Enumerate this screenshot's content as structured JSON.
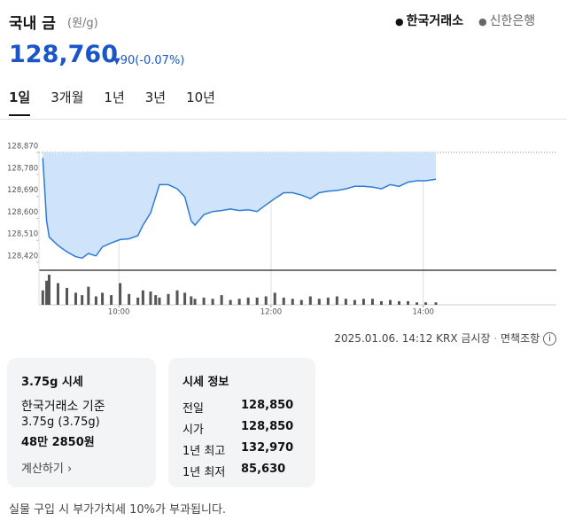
{
  "header": {
    "title": "국내 금",
    "unit": "(원/g)",
    "sources": [
      "한국거래소",
      "신한은행"
    ],
    "price": "128,760",
    "change": "90(-0.07%)"
  },
  "tabs": [
    "1일",
    "3개월",
    "1년",
    "3년",
    "10년"
  ],
  "chart_data": {
    "type": "area",
    "x": [
      540,
      543,
      545,
      552,
      559,
      566,
      571,
      576,
      582,
      587,
      594,
      601,
      608,
      615,
      619,
      625,
      629,
      632,
      639,
      646,
      652,
      657,
      660,
      667,
      674,
      681,
      688,
      695,
      702,
      709,
      716,
      723,
      730,
      737,
      744,
      751,
      758,
      765,
      772,
      779,
      786,
      793,
      800,
      807,
      814,
      821,
      828,
      835,
      842,
      850
    ],
    "values": [
      128847,
      128589,
      128523,
      128489,
      128463,
      128443,
      128437,
      128456,
      128446,
      128483,
      128499,
      128513,
      128516,
      128529,
      128572,
      128622,
      128688,
      128738,
      128738,
      128721,
      128688,
      128589,
      128572,
      128615,
      128628,
      128632,
      128638,
      128632,
      128635,
      128628,
      128655,
      128681,
      128705,
      128705,
      128695,
      128681,
      128705,
      128711,
      128714,
      128721,
      128731,
      128731,
      128728,
      128721,
      128738,
      128731,
      128748,
      128754,
      128754,
      128760
    ],
    "volume": [
      12,
      20,
      25,
      18,
      14,
      10,
      8,
      15,
      7,
      10,
      8,
      18,
      9,
      6,
      12,
      11,
      8,
      6,
      9,
      12,
      10,
      7,
      5,
      6,
      5,
      8,
      4,
      5,
      6,
      6,
      7,
      10,
      6,
      5,
      4,
      7,
      5,
      6,
      7,
      5,
      4,
      5,
      5,
      3,
      4,
      3,
      3,
      2,
      2,
      2
    ],
    "color": "#2e7bd6",
    "fill": "#cfe4fa",
    "volume_color": "#555555",
    "xlim": [
      537,
      945
    ],
    "xticks": [
      {
        "value": 600,
        "label": "10:00"
      },
      {
        "value": 720,
        "label": "12:00"
      },
      {
        "value": 840,
        "label": "14:00"
      }
    ],
    "ylim": [
      128420,
      128870
    ],
    "yticks": [
      {
        "value": 128870,
        "label": "128,870"
      },
      {
        "value": 128780,
        "label": "128,780"
      },
      {
        "value": 128690,
        "label": "128,690"
      },
      {
        "value": 128600,
        "label": "128,600"
      },
      {
        "value": 128510,
        "label": "128,510"
      },
      {
        "value": 128420,
        "label": "128,420"
      }
    ],
    "xgrid": true
  },
  "footer_info": {
    "timestamp": "2025.01.06. 14:12 KRX 금시장",
    "disclaimer": "면책조항"
  },
  "card_weight": {
    "title": "3.75g 시세",
    "basis": "한국거래소 기준",
    "weight": "3.75g (3.75g)",
    "amount": "48만 2850원",
    "link": "계산하기"
  },
  "card_info": {
    "title": "시세 정보",
    "rows": [
      [
        "전일",
        "128,850"
      ],
      [
        "시가",
        "128,850"
      ],
      [
        "1년 최고",
        "132,970"
      ],
      [
        "1년 최저",
        "85,630"
      ]
    ]
  },
  "note": "실물 구입 시 부가가치세 10%가 부과됩니다."
}
